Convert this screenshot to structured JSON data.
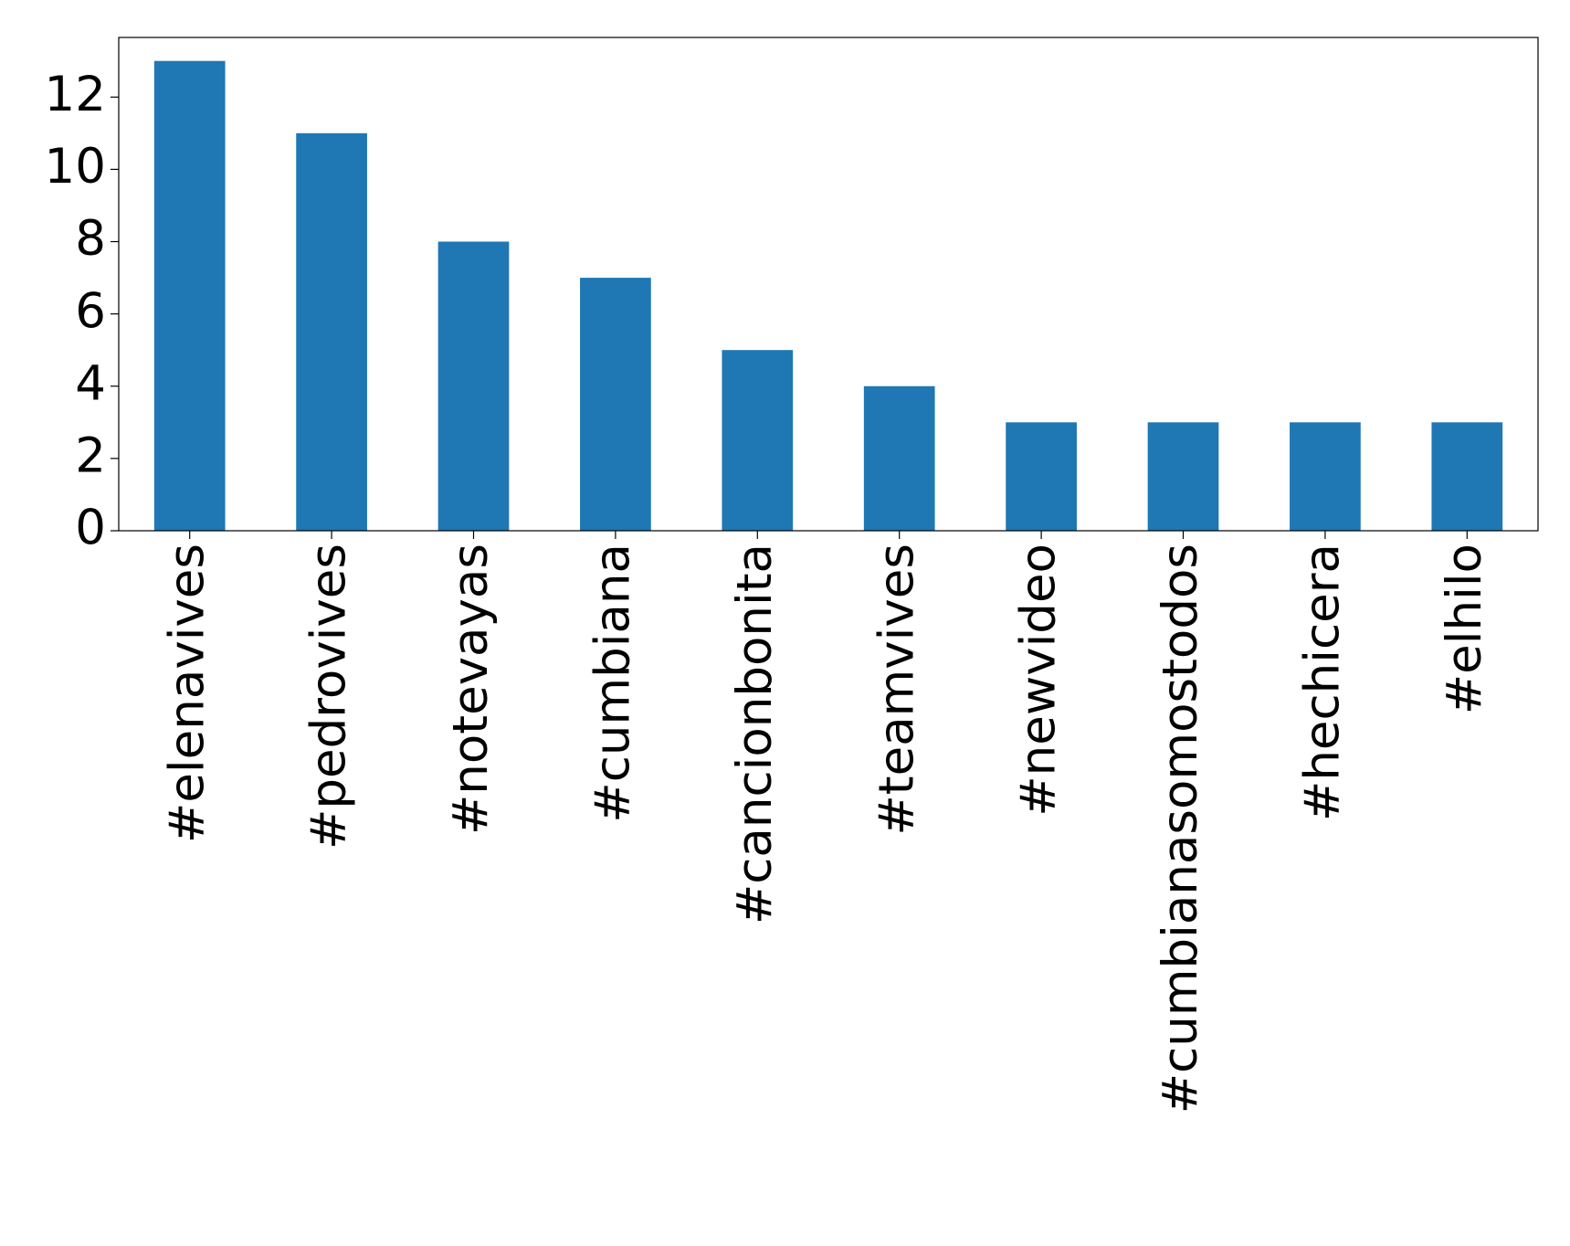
{
  "chart_data": {
    "type": "bar",
    "categories": [
      "#elenavives",
      "#pedrovives",
      "#notevayas",
      "#cumbiana",
      "#cancionbonita",
      "#teamvives",
      "#newvideo",
      "#cumbianasomostodos",
      "#hechicera",
      "#elhilo"
    ],
    "values": [
      13,
      11,
      8,
      7,
      5,
      4,
      3,
      3,
      3,
      3
    ],
    "color": "#1f77b4",
    "ylim": [
      0,
      13.65
    ],
    "yticks": [
      0,
      2,
      4,
      6,
      8,
      10,
      12
    ],
    "grid": false
  }
}
